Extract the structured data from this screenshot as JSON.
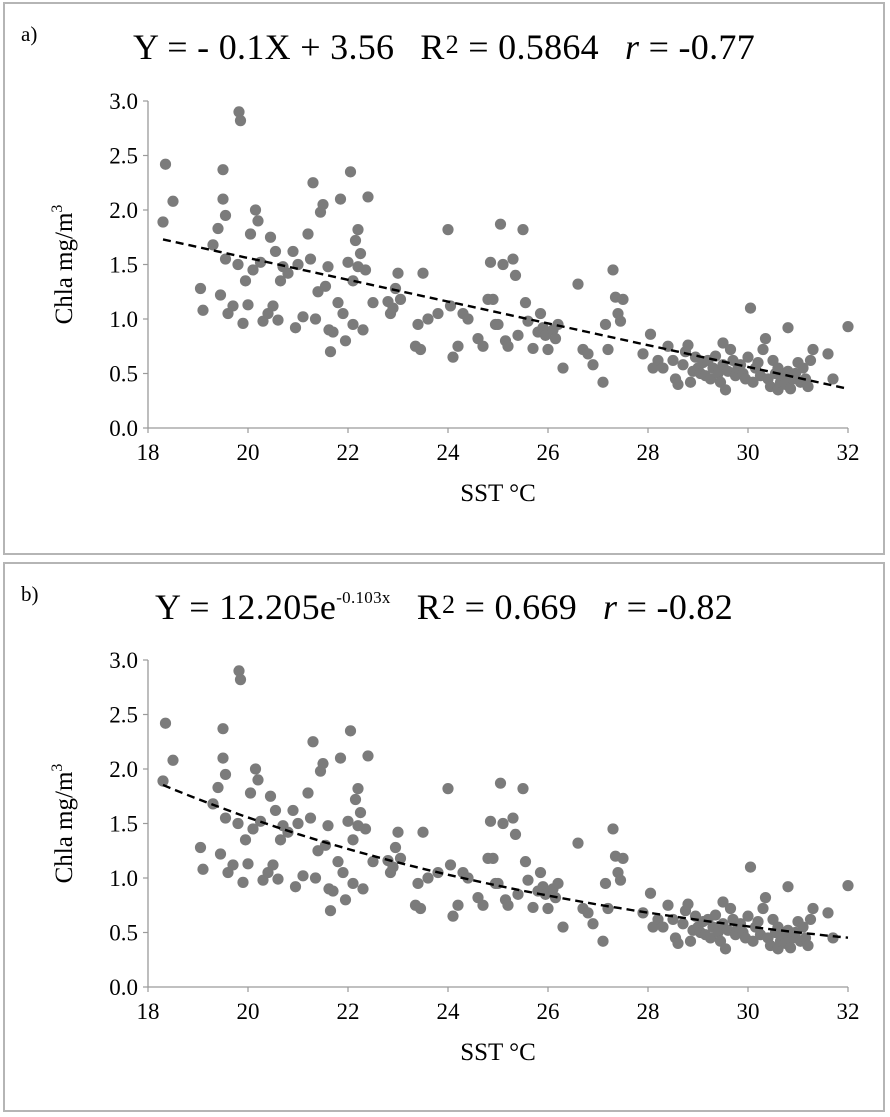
{
  "chart_data": [
    {
      "type": "scatter",
      "panel_label": "a)",
      "title": {
        "eq_prefix": "Y = - 0.1X + 3.56",
        "r2_label": "R",
        "r2_sup": "2",
        "r2_value": " = 0.5864",
        "r_label": "r",
        "r_value": " = -0.77"
      },
      "xlabel": "SST °C",
      "ylabel": "Chla mg/m",
      "ylabel_sup": "3",
      "xlim": [
        18,
        32
      ],
      "ylim": [
        0,
        3
      ],
      "xticks": [
        "18",
        "20",
        "22",
        "24",
        "26",
        "28",
        "30",
        "32"
      ],
      "yticks": [
        "0.0",
        "0.5",
        "1.0",
        "1.5",
        "2.0",
        "2.5",
        "3.0"
      ],
      "trend": {
        "kind": "linear",
        "slope": -0.1,
        "intercept": 3.56,
        "x_range": [
          18.3,
          32.0
        ]
      },
      "series": [
        {
          "name": "Chla",
          "points": "shared_points"
        }
      ]
    },
    {
      "type": "scatter",
      "panel_label": "b)",
      "title": {
        "eq_prefix": "Y = 12.205e",
        "eq_sup": "-0.103x",
        "r2_label": "R",
        "r2_sup": "2",
        "r2_value": " = 0.669",
        "r_label": "r",
        "r_value": " = -0.82"
      },
      "xlabel": "SST °C",
      "ylabel": "Chla mg/m",
      "ylabel_sup": "3",
      "xlim": [
        18,
        32
      ],
      "ylim": [
        0,
        3
      ],
      "xticks": [
        "18",
        "20",
        "22",
        "24",
        "26",
        "28",
        "30",
        "32"
      ],
      "yticks": [
        "0.0",
        "0.5",
        "1.0",
        "1.5",
        "2.0",
        "2.5",
        "3.0"
      ],
      "trend": {
        "kind": "exponential",
        "a": 12.205,
        "b": -0.103,
        "x_range": [
          18.3,
          32.0
        ]
      },
      "series": [
        {
          "name": "Chla",
          "points": "shared_points"
        }
      ]
    }
  ],
  "shared_points": [
    [
      18.3,
      1.89
    ],
    [
      18.35,
      2.42
    ],
    [
      18.5,
      2.08
    ],
    [
      19.05,
      1.28
    ],
    [
      19.1,
      1.08
    ],
    [
      19.3,
      1.68
    ],
    [
      19.4,
      1.83
    ],
    [
      19.45,
      1.22
    ],
    [
      19.5,
      2.37
    ],
    [
      19.5,
      2.1
    ],
    [
      19.55,
      1.95
    ],
    [
      19.55,
      1.55
    ],
    [
      19.6,
      1.05
    ],
    [
      19.7,
      1.12
    ],
    [
      19.8,
      1.5
    ],
    [
      19.82,
      2.9
    ],
    [
      19.85,
      2.82
    ],
    [
      19.9,
      0.96
    ],
    [
      19.95,
      1.35
    ],
    [
      20.0,
      1.13
    ],
    [
      20.05,
      1.78
    ],
    [
      20.1,
      1.45
    ],
    [
      20.15,
      2.0
    ],
    [
      20.2,
      1.9
    ],
    [
      20.25,
      1.52
    ],
    [
      20.3,
      0.98
    ],
    [
      20.4,
      1.05
    ],
    [
      20.45,
      1.75
    ],
    [
      20.5,
      1.12
    ],
    [
      20.55,
      1.62
    ],
    [
      20.6,
      0.99
    ],
    [
      20.65,
      1.35
    ],
    [
      20.7,
      1.48
    ],
    [
      20.8,
      1.42
    ],
    [
      20.9,
      1.62
    ],
    [
      20.95,
      0.92
    ],
    [
      21.0,
      1.5
    ],
    [
      21.1,
      1.02
    ],
    [
      21.2,
      1.78
    ],
    [
      21.25,
      1.55
    ],
    [
      21.3,
      2.25
    ],
    [
      21.35,
      1.0
    ],
    [
      21.4,
      1.25
    ],
    [
      21.45,
      1.98
    ],
    [
      21.5,
      2.05
    ],
    [
      21.55,
      1.3
    ],
    [
      21.6,
      1.48
    ],
    [
      21.62,
      0.9
    ],
    [
      21.65,
      0.7
    ],
    [
      21.7,
      0.88
    ],
    [
      21.8,
      1.15
    ],
    [
      21.85,
      2.1
    ],
    [
      21.9,
      1.05
    ],
    [
      21.95,
      0.8
    ],
    [
      22.0,
      1.52
    ],
    [
      22.05,
      2.35
    ],
    [
      22.1,
      0.95
    ],
    [
      22.1,
      1.35
    ],
    [
      22.15,
      1.72
    ],
    [
      22.2,
      1.82
    ],
    [
      22.2,
      1.48
    ],
    [
      22.25,
      1.6
    ],
    [
      22.3,
      0.9
    ],
    [
      22.35,
      1.45
    ],
    [
      22.4,
      2.12
    ],
    [
      22.5,
      1.15
    ],
    [
      22.8,
      1.16
    ],
    [
      22.85,
      1.05
    ],
    [
      22.9,
      1.1
    ],
    [
      22.95,
      1.28
    ],
    [
      23.0,
      1.42
    ],
    [
      23.05,
      1.18
    ],
    [
      23.35,
      0.75
    ],
    [
      23.4,
      0.95
    ],
    [
      23.45,
      0.72
    ],
    [
      23.5,
      1.42
    ],
    [
      23.6,
      1.0
    ],
    [
      23.8,
      1.05
    ],
    [
      24.0,
      1.82
    ],
    [
      24.05,
      1.12
    ],
    [
      24.1,
      0.65
    ],
    [
      24.2,
      0.75
    ],
    [
      24.3,
      1.05
    ],
    [
      24.4,
      1.0
    ],
    [
      24.6,
      0.82
    ],
    [
      24.7,
      0.75
    ],
    [
      24.8,
      1.18
    ],
    [
      24.85,
      1.52
    ],
    [
      24.9,
      1.18
    ],
    [
      24.95,
      0.95
    ],
    [
      25.0,
      0.95
    ],
    [
      25.05,
      1.87
    ],
    [
      25.1,
      1.5
    ],
    [
      25.15,
      0.8
    ],
    [
      25.2,
      0.75
    ],
    [
      25.3,
      1.55
    ],
    [
      25.35,
      1.4
    ],
    [
      25.4,
      0.85
    ],
    [
      25.5,
      1.82
    ],
    [
      25.55,
      1.15
    ],
    [
      25.6,
      0.98
    ],
    [
      25.7,
      0.73
    ],
    [
      25.8,
      0.88
    ],
    [
      25.85,
      1.05
    ],
    [
      25.9,
      0.92
    ],
    [
      25.95,
      0.85
    ],
    [
      26.0,
      0.72
    ],
    [
      26.1,
      0.9
    ],
    [
      26.15,
      0.82
    ],
    [
      26.2,
      0.95
    ],
    [
      26.3,
      0.55
    ],
    [
      26.6,
      1.32
    ],
    [
      26.7,
      0.72
    ],
    [
      26.8,
      0.68
    ],
    [
      26.9,
      0.58
    ],
    [
      27.1,
      0.42
    ],
    [
      27.15,
      0.95
    ],
    [
      27.2,
      0.72
    ],
    [
      27.3,
      1.45
    ],
    [
      27.35,
      1.2
    ],
    [
      27.4,
      1.05
    ],
    [
      27.45,
      0.98
    ],
    [
      27.5,
      1.18
    ],
    [
      27.9,
      0.68
    ],
    [
      28.05,
      0.86
    ],
    [
      28.1,
      0.55
    ],
    [
      28.2,
      0.62
    ],
    [
      28.3,
      0.55
    ],
    [
      28.4,
      0.75
    ],
    [
      28.5,
      0.62
    ],
    [
      28.55,
      0.45
    ],
    [
      28.6,
      0.4
    ],
    [
      28.7,
      0.58
    ],
    [
      28.75,
      0.7
    ],
    [
      28.8,
      0.76
    ],
    [
      28.85,
      0.42
    ],
    [
      28.9,
      0.52
    ],
    [
      28.95,
      0.65
    ],
    [
      29.0,
      0.55
    ],
    [
      29.05,
      0.5
    ],
    [
      29.1,
      0.6
    ],
    [
      29.15,
      0.48
    ],
    [
      29.2,
      0.62
    ],
    [
      29.25,
      0.45
    ],
    [
      29.3,
      0.55
    ],
    [
      29.35,
      0.66
    ],
    [
      29.4,
      0.5
    ],
    [
      29.45,
      0.42
    ],
    [
      29.5,
      0.58
    ],
    [
      29.5,
      0.78
    ],
    [
      29.55,
      0.35
    ],
    [
      29.6,
      0.52
    ],
    [
      29.65,
      0.72
    ],
    [
      29.7,
      0.62
    ],
    [
      29.75,
      0.48
    ],
    [
      29.8,
      0.55
    ],
    [
      29.85,
      0.58
    ],
    [
      29.9,
      0.5
    ],
    [
      29.95,
      0.45
    ],
    [
      30.0,
      0.65
    ],
    [
      30.05,
      1.1
    ],
    [
      30.1,
      0.42
    ],
    [
      30.15,
      0.55
    ],
    [
      30.2,
      0.6
    ],
    [
      30.25,
      0.48
    ],
    [
      30.3,
      0.72
    ],
    [
      30.35,
      0.82
    ],
    [
      30.4,
      0.45
    ],
    [
      30.45,
      0.38
    ],
    [
      30.5,
      0.62
    ],
    [
      30.55,
      0.5
    ],
    [
      30.6,
      0.35
    ],
    [
      30.6,
      0.55
    ],
    [
      30.65,
      0.42
    ],
    [
      30.7,
      0.48
    ],
    [
      30.75,
      0.4
    ],
    [
      30.8,
      0.52
    ],
    [
      30.8,
      0.92
    ],
    [
      30.85,
      0.36
    ],
    [
      30.9,
      0.45
    ],
    [
      30.95,
      0.5
    ],
    [
      31.0,
      0.6
    ],
    [
      31.05,
      0.42
    ],
    [
      31.1,
      0.55
    ],
    [
      31.15,
      0.45
    ],
    [
      31.2,
      0.38
    ],
    [
      31.25,
      0.62
    ],
    [
      31.3,
      0.72
    ],
    [
      31.6,
      0.68
    ],
    [
      31.7,
      0.45
    ],
    [
      32.0,
      0.93
    ]
  ]
}
